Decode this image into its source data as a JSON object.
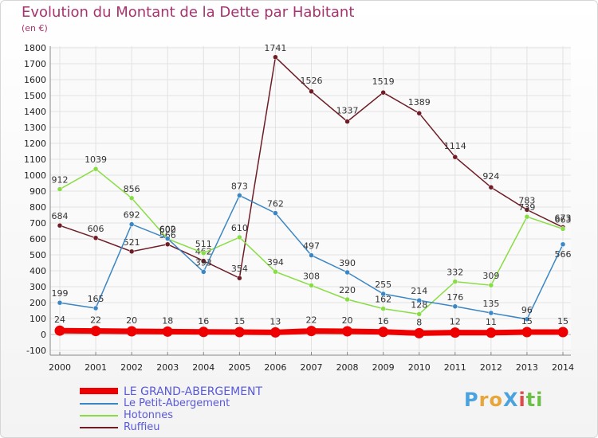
{
  "chart_data": {
    "type": "line",
    "title": "Evolution du Montant de la Dette par Habitant",
    "subtitle": "(en €)",
    "x": [
      "2000",
      "2001",
      "2002",
      "2003",
      "2004",
      "2005",
      "2006",
      "2007",
      "2008",
      "2009",
      "2010",
      "2011",
      "2012",
      "2013",
      "2014"
    ],
    "ylim": [
      -100,
      1800
    ],
    "yticks": [
      -100,
      0,
      100,
      200,
      300,
      400,
      500,
      600,
      700,
      800,
      900,
      1000,
      1100,
      1200,
      1300,
      1400,
      1500,
      1600,
      1700,
      1800
    ],
    "grid": true,
    "legend_position": "bottom",
    "series": [
      {
        "name": "Ruffieu",
        "color": "#6e1c25",
        "values": [
          684,
          606,
          521,
          566,
          462,
          354,
          1741,
          1526,
          1337,
          1519,
          1389,
          1114,
          924,
          783,
          673
        ]
      },
      {
        "name": "Hotonnes",
        "color": "#88dd44",
        "values": [
          912,
          1039,
          856,
          600,
          511,
          610,
          394,
          308,
          220,
          162,
          128,
          332,
          309,
          739,
          663
        ]
      },
      {
        "name": "Le Petit-Abergement",
        "color": "#3b86c4",
        "values": [
          199,
          165,
          692,
          602,
          393,
          873,
          762,
          497,
          390,
          255,
          214,
          176,
          135,
          96,
          566
        ]
      },
      {
        "name": "LE GRAND-ABERGEMENT",
        "color": "#ee0000",
        "values": [
          24,
          22,
          20,
          18,
          16,
          15,
          13,
          22,
          20,
          16,
          8,
          12,
          11,
          15,
          15
        ]
      }
    ],
    "data_labels": {
      "Ruffieu": [
        "684",
        "606",
        "521",
        "566",
        "462",
        "354",
        "1741",
        "1526",
        "1337",
        "1519",
        "1389",
        "1114",
        "924",
        "783",
        "673"
      ],
      "Hotonnes": [
        "912",
        "1039",
        "856",
        "600",
        "511",
        "610",
        "394",
        "308",
        "220",
        "162",
        "128",
        "332",
        "309",
        "739",
        "663"
      ],
      "Le Petit-Abergement": [
        "199",
        "165",
        "692",
        "602",
        "393",
        "873",
        "762",
        "497",
        "390",
        "255",
        "214",
        "176",
        "135",
        "96",
        "566"
      ],
      "LE GRAND-ABERGEMENT": [
        "24",
        "22",
        "20",
        "18",
        "16",
        "15",
        "13",
        "22",
        "20",
        "16",
        "8",
        "12",
        "11",
        "15",
        "15"
      ]
    }
  },
  "legend": [
    {
      "label": "LE GRAND-ABERGEMENT",
      "color": "#ee0000"
    },
    {
      "label": "Le Petit-Abergement",
      "color": "#3b86c4"
    },
    {
      "label": "Hotonnes",
      "color": "#88dd44"
    },
    {
      "label": "Ruffieu",
      "color": "#6e1c25"
    }
  ],
  "logo": {
    "text": "ProXiti",
    "colors": [
      "#4aa3df",
      "#e8a53a",
      "#e8a53a",
      "#4aa3df",
      "#e04a4a",
      "#6cc04a",
      "#6cc04a"
    ]
  }
}
